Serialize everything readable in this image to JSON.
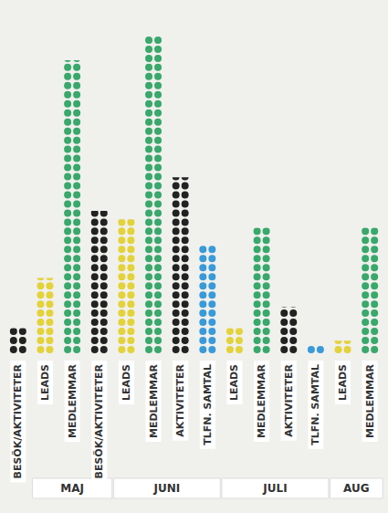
{
  "chart_data": {
    "type": "pictorial_bar",
    "ylim": [
      0,
      80
    ],
    "tick_labels": false,
    "grid": false,
    "groups": [
      {
        "label": null,
        "categories": [
          "BESÖK/AKTIVITETER"
        ],
        "values": [
          6
        ],
        "colors": [
          "#222222"
        ]
      },
      {
        "label": "MAJ",
        "categories": [
          "LEADS",
          "MEDLEMMAR",
          "BESÖK/AKTIVITETER"
        ],
        "values": [
          18,
          70,
          34
        ],
        "colors": [
          "#e3d23a",
          "#38a86b",
          "#222222"
        ]
      },
      {
        "label": "JUNI",
        "categories": [
          "LEADS",
          "MEDLEMMAR",
          "AKTIVITETER",
          "TLFN. SAMTAL"
        ],
        "values": [
          32,
          76,
          42,
          26
        ],
        "colors": [
          "#e3d23a",
          "#38a86b",
          "#222222",
          "#3a9ad9"
        ]
      },
      {
        "label": "JULI",
        "categories": [
          "LEADS",
          "MEDLEMMAR",
          "AKTIVITETER",
          "TLFN. SAMTAL"
        ],
        "values": [
          6,
          30,
          11,
          2
        ],
        "colors": [
          "#e3d23a",
          "#38a86b",
          "#222222",
          "#3a9ad9"
        ]
      },
      {
        "label": "AUG",
        "categories": [
          "LEADS",
          "MEDLEMMAR"
        ],
        "values": [
          3,
          30
        ],
        "colors": [
          "#e3d23a",
          "#38a86b"
        ]
      }
    ]
  }
}
